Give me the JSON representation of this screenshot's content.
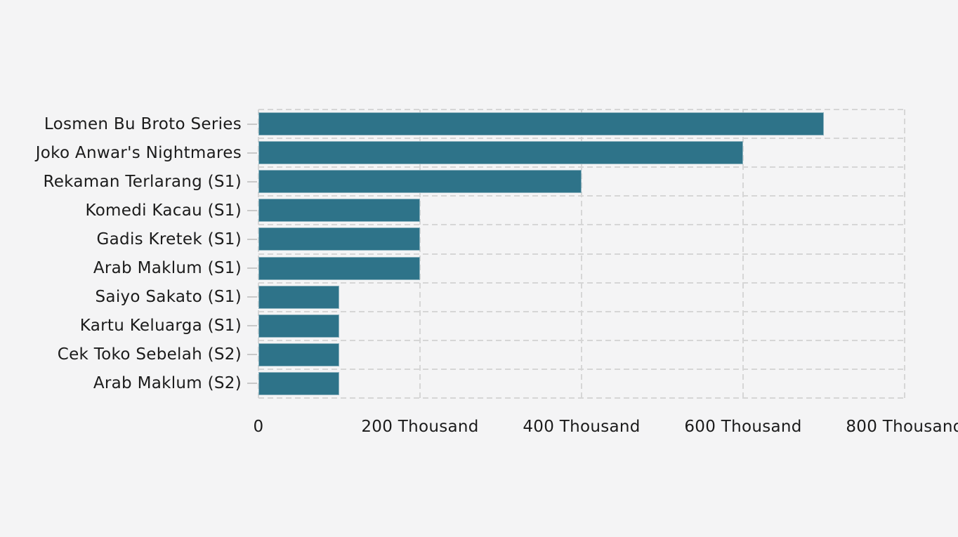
{
  "page": {
    "background_color": "#f4f4f5",
    "text_color": "#1b1b1b",
    "gridline_color": "#d6d6d6",
    "tick_color": "#c9c9c9"
  },
  "chart_data": {
    "type": "bar",
    "orientation": "horizontal",
    "title": "",
    "xlabel": "",
    "ylabel": "",
    "categories": [
      "Losmen Bu Broto Series",
      "Joko Anwar's Nightmares",
      "Rekaman Terlarang (S1)",
      "Komedi Kacau (S1)",
      "Gadis Kretek (S1)",
      "Arab Maklum (S1)",
      "Saiyo Sakato (S1)",
      "Kartu Keluarga (S1)",
      "Cek Toko Sebelah (S2)",
      "Arab Maklum (S2)"
    ],
    "values": [
      700000,
      600000,
      400000,
      200000,
      200000,
      200000,
      100000,
      100000,
      100000,
      100000
    ],
    "xlim": [
      0,
      800000
    ],
    "x_ticks": [
      {
        "value": 0,
        "label": "0"
      },
      {
        "value": 200000,
        "label": "200 Thousand"
      },
      {
        "value": 400000,
        "label": "400 Thousand"
      },
      {
        "value": 600000,
        "label": "600 Thousand"
      },
      {
        "value": 800000,
        "label": "800 Thousand"
      }
    ],
    "bar_color": "#2e7389",
    "grid": "dashed",
    "legend": "none"
  }
}
